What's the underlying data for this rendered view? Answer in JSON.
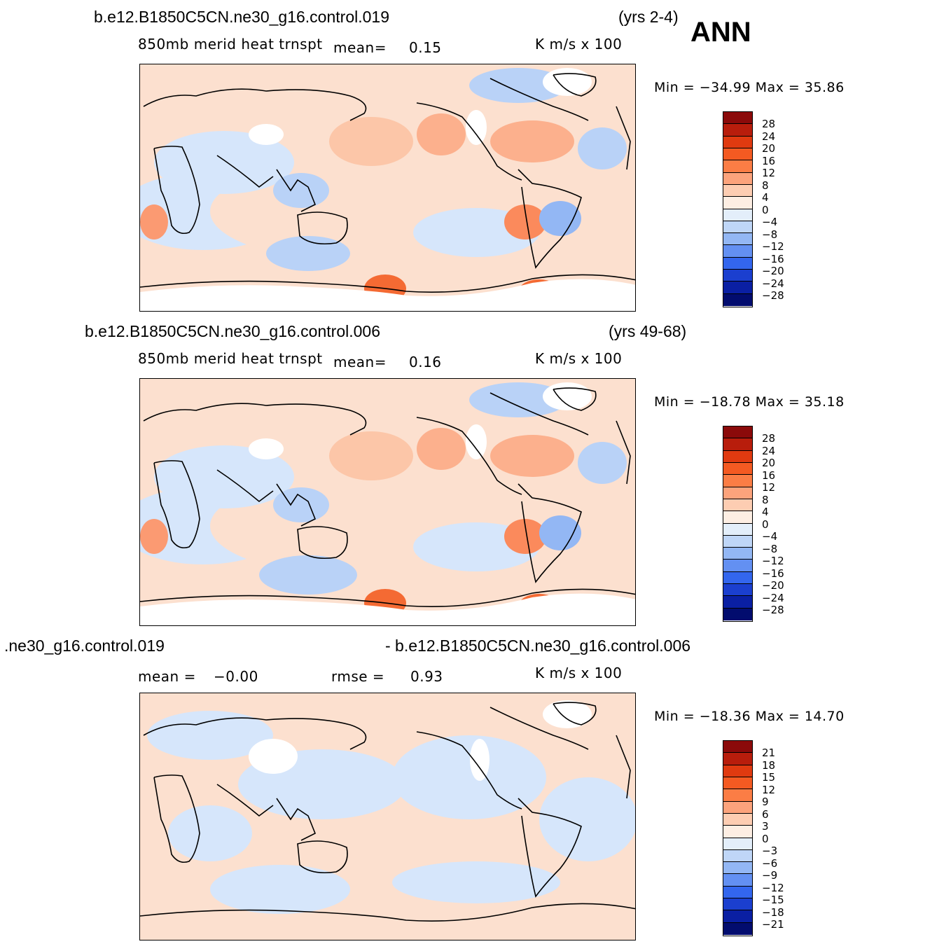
{
  "season": "ANN",
  "panels": [
    {
      "case": "b.e12.B1850C5CN.ne30_g16.control.019",
      "years": "(yrs 2-4)",
      "variable": "850mb merid heat trnspt",
      "mean_label": "mean=",
      "mean_value": "0.15",
      "units": "K m/s x 100",
      "minmax": "Min = −34.99 Max =   35.86",
      "levels": [
        "28",
        "24",
        "20",
        "16",
        "12",
        "8",
        "4",
        "0",
        "−4",
        "−8",
        "−12",
        "−16",
        "−20",
        "−24",
        "−28"
      ]
    },
    {
      "case": "b.e12.B1850C5CN.ne30_g16.control.006",
      "years": "(yrs 49-68)",
      "variable": "850mb merid heat trnspt",
      "mean_label": "mean=",
      "mean_value": "0.16",
      "units": "K m/s x 100",
      "minmax": "Min = −18.78 Max =   35.18",
      "levels": [
        "28",
        "24",
        "20",
        "16",
        "12",
        "8",
        "4",
        "0",
        "−4",
        "−8",
        "−12",
        "−16",
        "−20",
        "−24",
        "−28"
      ]
    },
    {
      "case_left": ".ne30_g16.control.019",
      "case_right": "- b.e12.B1850C5CN.ne30_g16.control.006",
      "mean_label": "mean =",
      "mean_value": "−0.00",
      "rmse_label": "rmse =",
      "rmse_value": "0.93",
      "units": "K m/s x 100",
      "minmax": "Min = −18.36 Max =   14.70",
      "levels": [
        "21",
        "18",
        "15",
        "12",
        "9",
        "6",
        "3",
        "0",
        "−3",
        "−6",
        "−9",
        "−12",
        "−15",
        "−18",
        "−21"
      ]
    }
  ],
  "colorbar_colors": [
    "#8b0a0a",
    "#b81d0c",
    "#e03a10",
    "#f45a22",
    "#fb7d45",
    "#fca37c",
    "#fdcdb2",
    "#fdeee3",
    "#e3eefa",
    "#bfd6f7",
    "#93b7f4",
    "#6390f2",
    "#3366ee",
    "#1b3fcf",
    "#0a1fa3",
    "#020c6e"
  ]
}
